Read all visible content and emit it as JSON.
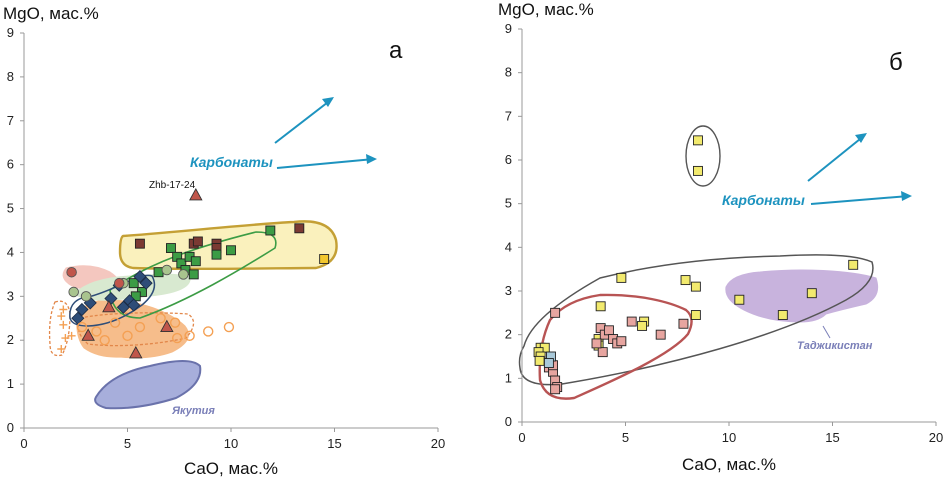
{
  "chart_data": [
    {
      "type": "scatter",
      "panel_label": "а",
      "xlabel": "CaO, мас.%",
      "ylabel": "MgO, мас.%",
      "xlim": [
        0,
        20
      ],
      "ylim": [
        0,
        9
      ],
      "x_ticks": [
        "0",
        "5",
        "10",
        "15",
        "20"
      ],
      "y_ticks": [
        "0",
        "1",
        "2",
        "3",
        "4",
        "5",
        "6",
        "7",
        "8",
        "9"
      ],
      "annotations": {
        "arrow_label": "Карбонаты",
        "point_label": "Zhb-17-24",
        "region_label": "Якутия"
      },
      "series": [
        {
          "marker": "square",
          "color": "#7b3a33",
          "points": [
            [
              5.6,
              4.2
            ],
            [
              8.2,
              4.2
            ],
            [
              8.4,
              4.25
            ],
            [
              9.3,
              4.2
            ],
            [
              9.3,
              4.1
            ],
            [
              13.3,
              4.55
            ]
          ]
        },
        {
          "marker": "square",
          "color": "#3c9c45",
          "points": [
            [
              7.1,
              4.1
            ],
            [
              7.4,
              3.9
            ],
            [
              7.6,
              3.75
            ],
            [
              7.8,
              3.6
            ],
            [
              8.0,
              3.9
            ],
            [
              8.2,
              3.5
            ],
            [
              8.3,
              3.8
            ],
            [
              9.3,
              3.95
            ],
            [
              10.0,
              4.05
            ],
            [
              11.9,
              4.5
            ],
            [
              6.5,
              3.55
            ],
            [
              5.3,
              3.3
            ],
            [
              5.7,
              3.1
            ],
            [
              5.4,
              3.0
            ]
          ]
        },
        {
          "marker": "square",
          "color": "#f2c72e",
          "points": [
            [
              14.5,
              3.85
            ]
          ]
        },
        {
          "marker": "diamond",
          "color": "#2e4d78",
          "points": [
            [
              2.6,
              2.5
            ],
            [
              2.8,
              2.7
            ],
            [
              3.2,
              2.85
            ],
            [
              4.2,
              2.95
            ],
            [
              4.6,
              3.25
            ],
            [
              4.8,
              2.75
            ],
            [
              5.1,
              2.9
            ],
            [
              5.3,
              2.8
            ],
            [
              5.6,
              3.45
            ],
            [
              5.9,
              3.3
            ]
          ]
        },
        {
          "marker": "circle",
          "color": "#a9c48e",
          "points": [
            [
              2.4,
              3.1
            ],
            [
              3.0,
              3.0
            ],
            [
              4.8,
              3.3
            ],
            [
              6.9,
              3.6
            ],
            [
              7.7,
              3.5
            ]
          ]
        },
        {
          "marker": "circle",
          "color": "#c0564b",
          "points": [
            [
              2.3,
              3.55
            ],
            [
              4.6,
              3.3
            ]
          ]
        },
        {
          "marker": "triangle",
          "color": "#c0564b",
          "points": [
            [
              3.1,
              2.1
            ],
            [
              4.1,
              2.75
            ],
            [
              5.4,
              1.7
            ],
            [
              6.9,
              2.3
            ],
            [
              8.3,
              5.3
            ]
          ]
        },
        {
          "marker": "open-circle",
          "color": "#f4a053",
          "points": [
            [
              2.8,
              2.3
            ],
            [
              3.5,
              2.2
            ],
            [
              3.9,
              2.0
            ],
            [
              4.4,
              2.4
            ],
            [
              5.0,
              2.1
            ],
            [
              5.6,
              2.3
            ],
            [
              6.6,
              2.5
            ],
            [
              7.3,
              2.4
            ],
            [
              8.0,
              2.1
            ],
            [
              8.9,
              2.2
            ],
            [
              9.9,
              2.3
            ],
            [
              7.4,
              2.05
            ]
          ]
        },
        {
          "marker": "plus",
          "color": "#f4a053",
          "points": [
            [
              1.8,
              2.55
            ],
            [
              1.9,
              2.35
            ],
            [
              2.0,
              2.05
            ],
            [
              1.8,
              1.8
            ],
            [
              2.3,
              2.1
            ],
            [
              1.9,
              2.7
            ]
          ]
        }
      ]
    },
    {
      "type": "scatter",
      "panel_label": "б",
      "xlabel": "CaO, мас.%",
      "ylabel": "MgO, мас.%",
      "xlim": [
        0,
        20
      ],
      "ylim": [
        0,
        9
      ],
      "x_ticks": [
        "0",
        "5",
        "10",
        "15",
        "20"
      ],
      "y_ticks": [
        "0",
        "1",
        "2",
        "3",
        "4",
        "5",
        "6",
        "7",
        "8",
        "9"
      ],
      "annotations": {
        "arrow_label": "Карбонаты",
        "region_label": "Таджикистан"
      },
      "series": [
        {
          "marker": "square",
          "color": "#f2ea6e",
          "points": [
            [
              8.5,
              6.45
            ],
            [
              8.5,
              5.75
            ],
            [
              4.8,
              3.3
            ],
            [
              7.9,
              3.25
            ],
            [
              8.4,
              3.1
            ],
            [
              3.8,
              2.65
            ],
            [
              8.4,
              2.45
            ],
            [
              5.9,
              2.3
            ],
            [
              5.8,
              2.2
            ],
            [
              3.7,
              1.9
            ],
            [
              3.7,
              1.75
            ],
            [
              0.9,
              1.7
            ],
            [
              1.1,
              1.7
            ],
            [
              0.8,
              1.6
            ],
            [
              0.9,
              1.5
            ],
            [
              0.85,
              1.4
            ],
            [
              10.5,
              2.8
            ],
            [
              12.6,
              2.45
            ],
            [
              14.0,
              2.95
            ],
            [
              16.0,
              3.6
            ]
          ]
        },
        {
          "marker": "square",
          "color": "#e7a5a0",
          "points": [
            [
              1.6,
              2.5
            ],
            [
              3.8,
              2.15
            ],
            [
              4.0,
              2.0
            ],
            [
              4.2,
              2.1
            ],
            [
              4.4,
              1.9
            ],
            [
              4.6,
              1.8
            ],
            [
              4.8,
              1.85
            ],
            [
              5.3,
              2.3
            ],
            [
              6.7,
              2.0
            ],
            [
              7.8,
              2.25
            ],
            [
              3.9,
              1.6
            ],
            [
              3.6,
              1.8
            ],
            [
              1.3,
              1.25
            ],
            [
              1.5,
              1.15
            ],
            [
              1.6,
              0.95
            ],
            [
              1.7,
              0.8
            ],
            [
              1.6,
              0.75
            ],
            [
              1.5,
              1.3
            ]
          ]
        },
        {
          "marker": "square",
          "color": "#a9c9d9",
          "points": [
            [
              1.4,
              1.5
            ],
            [
              1.3,
              1.35
            ]
          ]
        }
      ]
    }
  ]
}
